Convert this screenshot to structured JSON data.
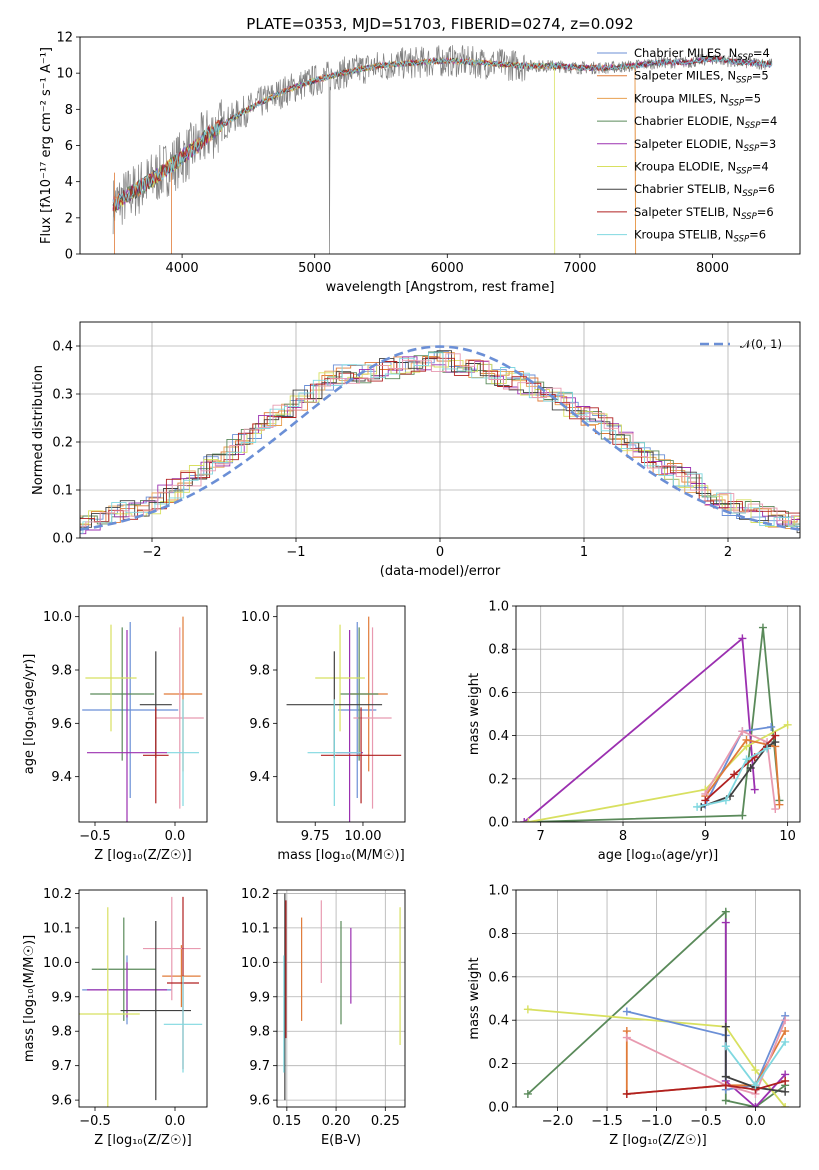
{
  "chart_data": [
    {
      "id": "spectrum",
      "type": "line",
      "title": "PLATE=0353, MJD=51703, FIBERID=0274, z=0.092",
      "xlabel": "wavelength [Angstrom, rest frame]",
      "ylabel": "Flux [fλ10⁻¹⁷ erg cm⁻² s⁻¹ A⁻¹]",
      "xlim": [
        3230,
        8660
      ],
      "ylim": [
        0,
        12
      ],
      "xticks": [
        4000,
        5000,
        6000,
        7000,
        8000
      ],
      "yticks": [
        0,
        2,
        4,
        6,
        8,
        10,
        12
      ],
      "grid": false,
      "legend_position": "right",
      "spectrum_shape": {
        "wavelength": [
          3480,
          3600,
          3750,
          3900,
          4050,
          4200,
          4400,
          4600,
          4800,
          5000,
          5200,
          5400,
          5600,
          5800,
          6000,
          6200,
          6400,
          6600,
          6800,
          7000,
          7200,
          7400,
          7600,
          7800,
          8000,
          8200,
          8450
        ],
        "flux": [
          2.7,
          3.3,
          4.0,
          4.8,
          5.6,
          6.6,
          7.6,
          8.4,
          9.1,
          9.6,
          10.0,
          10.3,
          10.5,
          10.6,
          10.7,
          10.6,
          10.5,
          10.4,
          10.4,
          10.3,
          10.3,
          10.4,
          10.6,
          10.6,
          10.8,
          10.6,
          10.5
        ]
      },
      "series": [
        {
          "name": "Chabrier MILES, N",
          "sub": "SSP",
          "tail": "=4",
          "color": "#6b8fd6"
        },
        {
          "name": "Salpeter MILES, N",
          "sub": "SSP",
          "tail": "=5",
          "color": "#e07b39"
        },
        {
          "name": "Kroupa MILES, N",
          "sub": "SSP",
          "tail": "=5",
          "color": "#e8a050"
        },
        {
          "name": "Chabrier ELODIE, N",
          "sub": "SSP",
          "tail": "=4",
          "color": "#5a8a5a"
        },
        {
          "name": "Salpeter ELODIE, N",
          "sub": "SSP",
          "tail": "=3",
          "color": "#9b30b0"
        },
        {
          "name": "Kroupa ELODIE, N",
          "sub": "SSP",
          "tail": "=4",
          "color": "#d8e060"
        },
        {
          "name": "Chabrier STELIB, N",
          "sub": "SSP",
          "tail": "=6",
          "color": "#404040"
        },
        {
          "name": "Salpeter STELIB, N",
          "sub": "SSP",
          "tail": "=6",
          "color": "#b02020"
        },
        {
          "name": "Kroupa STELIB, N",
          "sub": "SSP",
          "tail": "=6",
          "color": "#80d8e0"
        }
      ]
    },
    {
      "id": "residuals",
      "type": "bar",
      "xlabel": "(data-model)/error",
      "ylabel": "Normed distribution",
      "xlim": [
        -2.5,
        2.5
      ],
      "ylim": [
        0,
        0.45
      ],
      "xticks": [
        -2,
        -1,
        0,
        1,
        2
      ],
      "yticks": [
        0.0,
        0.1,
        0.2,
        0.3,
        0.4
      ],
      "grid": true,
      "legend": "𝒩(0, 1)",
      "legend_position": "top-right",
      "histogram_envelope": {
        "x": [
          -2.5,
          -2.0,
          -1.5,
          -1.0,
          -0.7,
          -0.4,
          0.0,
          0.4,
          0.7,
          1.0,
          1.5,
          2.0,
          2.5
        ],
        "y": [
          0.03,
          0.07,
          0.17,
          0.28,
          0.34,
          0.35,
          0.37,
          0.34,
          0.31,
          0.26,
          0.16,
          0.07,
          0.025
        ]
      },
      "normal": {
        "mean": 0,
        "sigma": 1
      }
    },
    {
      "id": "age_vs_Z",
      "type": "scatter",
      "xlabel": "Z [log₁₀(Z/Z☉)]",
      "ylabel": "age  [log₁₀(age/yr)]",
      "xlim": [
        -0.6,
        0.2
      ],
      "ylim": [
        9.23,
        10.04
      ],
      "xticks": [
        -0.5,
        0.0
      ],
      "yticks": [
        9.4,
        9.6,
        9.8,
        10.0
      ],
      "grid": false,
      "points": [
        {
          "x": -0.28,
          "y": 9.65,
          "xerr": 0.3,
          "yerr": 0.33,
          "color": "#6b8fd6"
        },
        {
          "x": 0.05,
          "y": 9.71,
          "xerr": 0.12,
          "yerr": 0.29,
          "color": "#e07b39"
        },
        {
          "x": 0.03,
          "y": 9.62,
          "xerr": 0.15,
          "yerr": 0.34,
          "color": "#e89ab0"
        },
        {
          "x": -0.33,
          "y": 9.71,
          "xerr": 0.2,
          "yerr": 0.25,
          "color": "#5a8a5a"
        },
        {
          "x": -0.3,
          "y": 9.49,
          "xerr": 0.25,
          "yerr": 0.46,
          "color": "#9b30b0"
        },
        {
          "x": -0.4,
          "y": 9.77,
          "xerr": 0.16,
          "yerr": 0.2,
          "color": "#d8e060"
        },
        {
          "x": -0.12,
          "y": 9.67,
          "xerr": 0.1,
          "yerr": 0.2,
          "color": "#404040"
        },
        {
          "x": -0.12,
          "y": 9.48,
          "xerr": 0.08,
          "yerr": 0.18,
          "color": "#b02020"
        },
        {
          "x": 0.05,
          "y": 9.49,
          "xerr": 0.1,
          "yerr": 0.2,
          "color": "#80d8e0"
        }
      ]
    },
    {
      "id": "age_vs_mass",
      "type": "scatter",
      "xlabel": "mass [log₁₀(M/M☉)]",
      "ylabel": "",
      "xlim": [
        9.55,
        10.22
      ],
      "ylim": [
        9.23,
        10.04
      ],
      "xticks": [
        9.75,
        10.0
      ],
      "yticks": [
        9.4,
        9.6,
        9.8,
        10.0
      ],
      "grid": false,
      "points": [
        {
          "x": 9.97,
          "y": 9.65,
          "xerr": 0.1,
          "yerr": 0.33,
          "color": "#6b8fd6"
        },
        {
          "x": 10.03,
          "y": 9.71,
          "xerr": 0.1,
          "yerr": 0.29,
          "color": "#e07b39"
        },
        {
          "x": 10.05,
          "y": 9.62,
          "xerr": 0.1,
          "yerr": 0.34,
          "color": "#e89ab0"
        },
        {
          "x": 9.98,
          "y": 9.71,
          "xerr": 0.1,
          "yerr": 0.25,
          "color": "#5a8a5a"
        },
        {
          "x": 9.93,
          "y": 9.49,
          "xerr": 0.07,
          "yerr": 0.46,
          "color": "#9b30b0"
        },
        {
          "x": 9.88,
          "y": 9.77,
          "xerr": 0.13,
          "yerr": 0.2,
          "color": "#d8e060"
        },
        {
          "x": 9.85,
          "y": 9.67,
          "xerr": 0.25,
          "yerr": 0.2,
          "color": "#404040"
        },
        {
          "x": 9.99,
          "y": 9.48,
          "xerr": 0.21,
          "yerr": 0.18,
          "color": "#b02020"
        },
        {
          "x": 9.85,
          "y": 9.49,
          "xerr": 0.14,
          "yerr": 0.2,
          "color": "#80d8e0"
        }
      ]
    },
    {
      "id": "weight_vs_age",
      "type": "line",
      "xlabel": "age  [log₁₀(age/yr)]",
      "ylabel": "mass weight",
      "xlim": [
        6.7,
        10.15
      ],
      "ylim": [
        0,
        1.0
      ],
      "xticks": [
        7,
        8,
        9,
        10
      ],
      "yticks": [
        0.0,
        0.2,
        0.4,
        0.6,
        0.8,
        1.0
      ],
      "grid": true,
      "series": [
        {
          "color": "#5a8a5a",
          "x": [
            6.85,
            9.45,
            9.7,
            9.9
          ],
          "y": [
            0.0,
            0.03,
            0.9,
            0.1
          ]
        },
        {
          "color": "#9b30b0",
          "x": [
            6.8,
            9.45,
            9.6
          ],
          "y": [
            0.0,
            0.85,
            0.15
          ]
        },
        {
          "color": "#d8e060",
          "x": [
            6.85,
            9.0,
            9.5,
            10.0
          ],
          "y": [
            0.0,
            0.15,
            0.35,
            0.45
          ]
        },
        {
          "color": "#6b8fd6",
          "x": [
            9.0,
            9.45,
            9.8
          ],
          "y": [
            0.08,
            0.42,
            0.44
          ]
        },
        {
          "color": "#e07b39",
          "x": [
            9.0,
            9.5,
            9.85,
            9.9
          ],
          "y": [
            0.12,
            0.38,
            0.35,
            0.08
          ]
        },
        {
          "color": "#e89ab0",
          "x": [
            9.0,
            9.45,
            9.75,
            9.85
          ],
          "y": [
            0.13,
            0.42,
            0.37,
            0.06
          ]
        },
        {
          "color": "#404040",
          "x": [
            8.95,
            9.3,
            9.55,
            9.75,
            9.85
          ],
          "y": [
            0.07,
            0.12,
            0.25,
            0.35,
            0.37
          ]
        },
        {
          "color": "#b02020",
          "x": [
            9.0,
            9.35,
            9.6,
            9.85
          ],
          "y": [
            0.1,
            0.22,
            0.3,
            0.4
          ]
        },
        {
          "color": "#80d8e0",
          "x": [
            8.9,
            9.25,
            9.5,
            9.75
          ],
          "y": [
            0.07,
            0.1,
            0.29,
            0.34
          ]
        }
      ]
    },
    {
      "id": "mass_vs_Z",
      "type": "scatter",
      "xlabel": "Z [log₁₀(Z/Z☉)]",
      "ylabel": "mass [log₁₀(M/M☉)]",
      "xlim": [
        -0.6,
        0.2
      ],
      "ylim": [
        9.58,
        10.21
      ],
      "xticks": [
        -0.5,
        0.0
      ],
      "yticks": [
        9.6,
        9.7,
        9.8,
        9.9,
        10.0,
        10.1,
        10.2
      ],
      "grid": false,
      "points": [
        {
          "x": -0.3,
          "y": 9.92,
          "xerr": 0.28,
          "yerr": 0.1,
          "color": "#6b8fd6"
        },
        {
          "x": 0.04,
          "y": 9.96,
          "xerr": 0.12,
          "yerr": 0.09,
          "color": "#e07b39"
        },
        {
          "x": -0.02,
          "y": 10.04,
          "xerr": 0.18,
          "yerr": 0.15,
          "color": "#e89ab0"
        },
        {
          "x": -0.32,
          "y": 9.98,
          "xerr": 0.2,
          "yerr": 0.15,
          "color": "#5a8a5a"
        },
        {
          "x": -0.3,
          "y": 9.92,
          "xerr": 0.25,
          "yerr": 0.08,
          "color": "#9b30b0"
        },
        {
          "x": -0.42,
          "y": 9.85,
          "xerr": 0.2,
          "yerr": 0.31,
          "color": "#d8e060"
        },
        {
          "x": -0.12,
          "y": 9.86,
          "xerr": 0.22,
          "yerr": 0.26,
          "color": "#404040"
        },
        {
          "x": 0.05,
          "y": 9.94,
          "xerr": 0.1,
          "yerr": 0.25,
          "color": "#b02020"
        },
        {
          "x": 0.05,
          "y": 9.82,
          "xerr": 0.12,
          "yerr": 0.14,
          "color": "#80d8e0"
        }
      ]
    },
    {
      "id": "mass_vs_ebv",
      "type": "scatter",
      "xlabel": "E(B-V)",
      "ylabel": "",
      "xlim": [
        0.14,
        0.27
      ],
      "ylim": [
        9.58,
        10.21
      ],
      "xticks": [
        0.15,
        0.2,
        0.25
      ],
      "yticks": [
        9.6,
        9.7,
        9.8,
        9.9,
        10.0,
        10.1,
        10.2
      ],
      "grid": true,
      "points": [
        {
          "x": 0.148,
          "y": 9.9,
          "xerr": 0,
          "yerr": 0.3,
          "color": "#404040"
        },
        {
          "x": 0.149,
          "y": 9.98,
          "xerr": 0,
          "yerr": 0.2,
          "color": "#b02020"
        },
        {
          "x": 0.147,
          "y": 9.85,
          "xerr": 0,
          "yerr": 0.17,
          "color": "#80d8e0"
        },
        {
          "x": 0.165,
          "y": 9.98,
          "xerr": 0,
          "yerr": 0.15,
          "color": "#e07b39"
        },
        {
          "x": 0.185,
          "y": 10.06,
          "xerr": 0,
          "yerr": 0.12,
          "color": "#e89ab0"
        },
        {
          "x": 0.205,
          "y": 9.97,
          "xerr": 0,
          "yerr": 0.15,
          "color": "#5a8a5a"
        },
        {
          "x": 0.215,
          "y": 9.99,
          "xerr": 0,
          "yerr": 0.11,
          "color": "#9b30b0"
        },
        {
          "x": 0.265,
          "y": 9.96,
          "xerr": 0,
          "yerr": 0.2,
          "color": "#d8e060"
        }
      ]
    },
    {
      "id": "weight_vs_Z",
      "type": "line",
      "xlabel": "Z [log₁₀(Z/Z☉)]",
      "ylabel": "mass weight",
      "xlim": [
        -2.42,
        0.45
      ],
      "ylim": [
        0,
        1.0
      ],
      "xticks": [
        -2.0,
        -1.5,
        -1.0,
        -0.5,
        0.0
      ],
      "yticks": [
        0.0,
        0.2,
        0.4,
        0.6,
        0.8,
        1.0
      ],
      "grid": true,
      "series": [
        {
          "color": "#5a8a5a",
          "x": [
            -2.3,
            -0.3,
            -0.3,
            0.0,
            0.3
          ],
          "y": [
            0.06,
            0.9,
            0.03,
            0.0,
            0.1
          ]
        },
        {
          "color": "#9b30b0",
          "x": [
            -0.3,
            -0.3,
            0.0,
            0.3
          ],
          "y": [
            0.85,
            0.12,
            0.0,
            0.15
          ]
        },
        {
          "color": "#d8e060",
          "x": [
            -2.3,
            -0.3,
            0.0,
            0.3
          ],
          "y": [
            0.45,
            0.37,
            0.17,
            0.0
          ]
        },
        {
          "color": "#6b8fd6",
          "x": [
            -1.3,
            -0.3,
            -0.3,
            0.0,
            0.3
          ],
          "y": [
            0.44,
            0.33,
            0.08,
            0.1,
            0.42
          ]
        },
        {
          "color": "#e07b39",
          "x": [
            -1.3,
            -1.3,
            -0.3,
            0.0,
            0.3
          ],
          "y": [
            0.35,
            0.06,
            0.1,
            0.1,
            0.35
          ]
        },
        {
          "color": "#e89ab0",
          "x": [
            -1.3,
            -0.3,
            0.0,
            0.3
          ],
          "y": [
            0.32,
            0.1,
            0.06,
            0.4
          ]
        },
        {
          "color": "#404040",
          "x": [
            -0.3,
            -0.3,
            0.0,
            0.3
          ],
          "y": [
            0.37,
            0.14,
            0.09,
            0.07
          ]
        },
        {
          "color": "#b02020",
          "x": [
            -1.3,
            -0.3,
            0.0,
            0.3
          ],
          "y": [
            0.06,
            0.1,
            0.08,
            0.12
          ]
        },
        {
          "color": "#80d8e0",
          "x": [
            -0.3,
            0.0,
            0.3
          ],
          "y": [
            0.28,
            0.1,
            0.3
          ]
        }
      ]
    }
  ]
}
